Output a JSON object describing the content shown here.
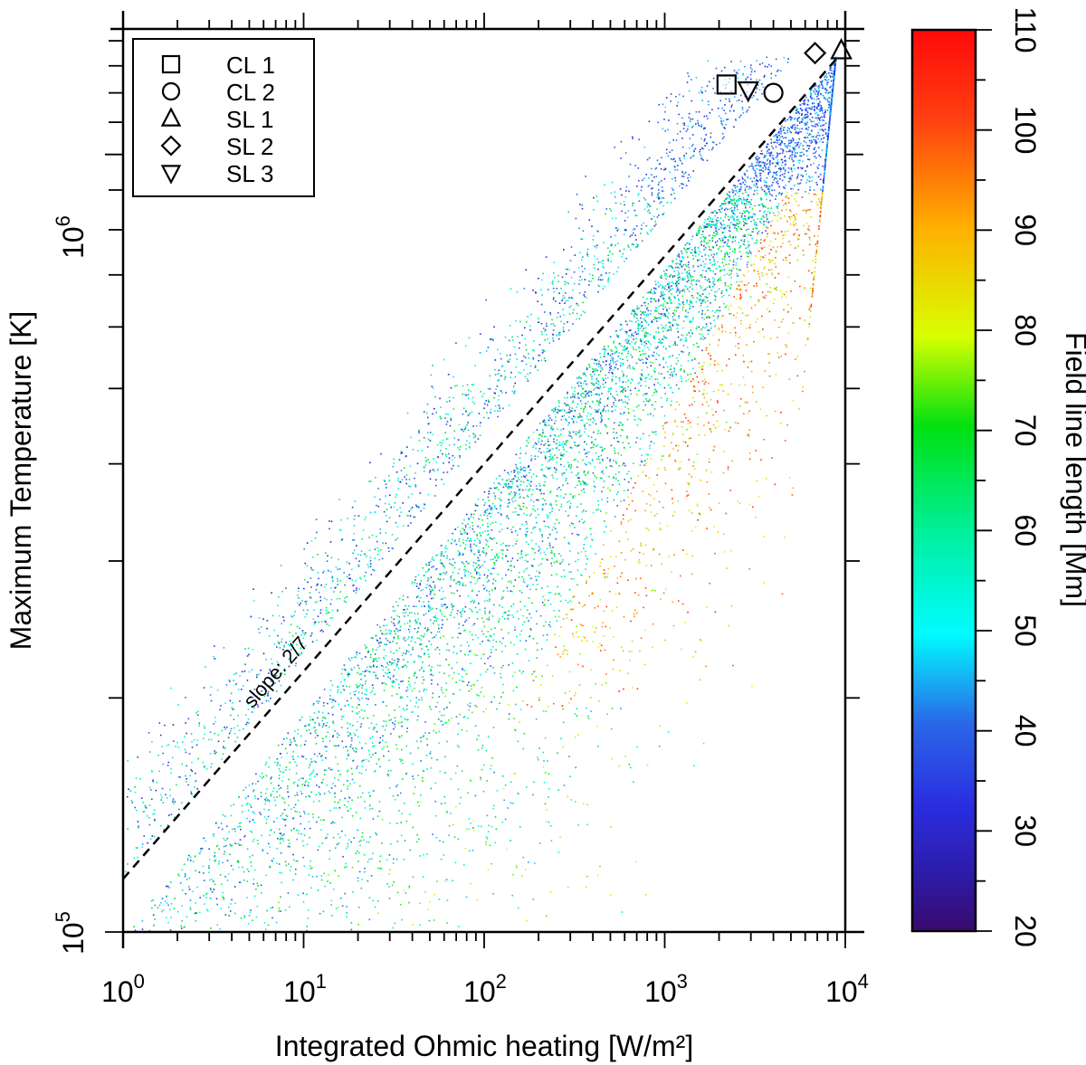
{
  "chart_data": {
    "type": "scatter",
    "xlabel": "Integrated Ohmic heating [W/m²]",
    "ylabel": "Maximum Temperature [K]",
    "xscale": "log",
    "yscale": "log",
    "xlim": [
      1,
      10000
    ],
    "ylim": [
      100000,
      1450000
    ],
    "x_tick_labels": [
      {
        "base": "10",
        "exp": "0"
      },
      {
        "base": "10",
        "exp": "1"
      },
      {
        "base": "10",
        "exp": "2"
      },
      {
        "base": "10",
        "exp": "3"
      },
      {
        "base": "10",
        "exp": "4"
      }
    ],
    "y_tick_labels": [
      {
        "base": "10",
        "exp": "5"
      },
      {
        "base": "10",
        "exp": "6"
      }
    ],
    "colorbar": {
      "label": "Field line length [Mm]",
      "range": [
        20,
        110
      ],
      "tick_labels": [
        "20",
        "30",
        "40",
        "50",
        "60",
        "70",
        "80",
        "90",
        "100",
        "110"
      ],
      "colormap": "rainbow (purple to red)"
    },
    "reference_line": {
      "label": "slope: 2/7",
      "style": "dashed",
      "slope": 0.2857,
      "points": [
        [
          1,
          117000
        ],
        [
          9000,
          1330000
        ]
      ]
    },
    "legend": {
      "position": "top-left",
      "entries": [
        {
          "label": "CL 1",
          "marker": "square"
        },
        {
          "label": "CL 2",
          "marker": "circle"
        },
        {
          "label": "SL 1",
          "marker": "triangle-up"
        },
        {
          "label": "SL 2",
          "marker": "diamond"
        },
        {
          "label": "SL 3",
          "marker": "triangle-down"
        }
      ]
    },
    "marked_points": [
      {
        "name": "CL 1",
        "marker": "square",
        "x": 2200,
        "y": 1230000
      },
      {
        "name": "CL 2",
        "marker": "circle",
        "x": 4000,
        "y": 1200000
      },
      {
        "name": "SL 1",
        "marker": "triangle-up",
        "x": 9500,
        "y": 1360000
      },
      {
        "name": "SL 2",
        "marker": "diamond",
        "x": 6800,
        "y": 1350000
      },
      {
        "name": "SL 3",
        "marker": "triangle-down",
        "x": 2900,
        "y": 1210000
      }
    ],
    "grid": false
  }
}
